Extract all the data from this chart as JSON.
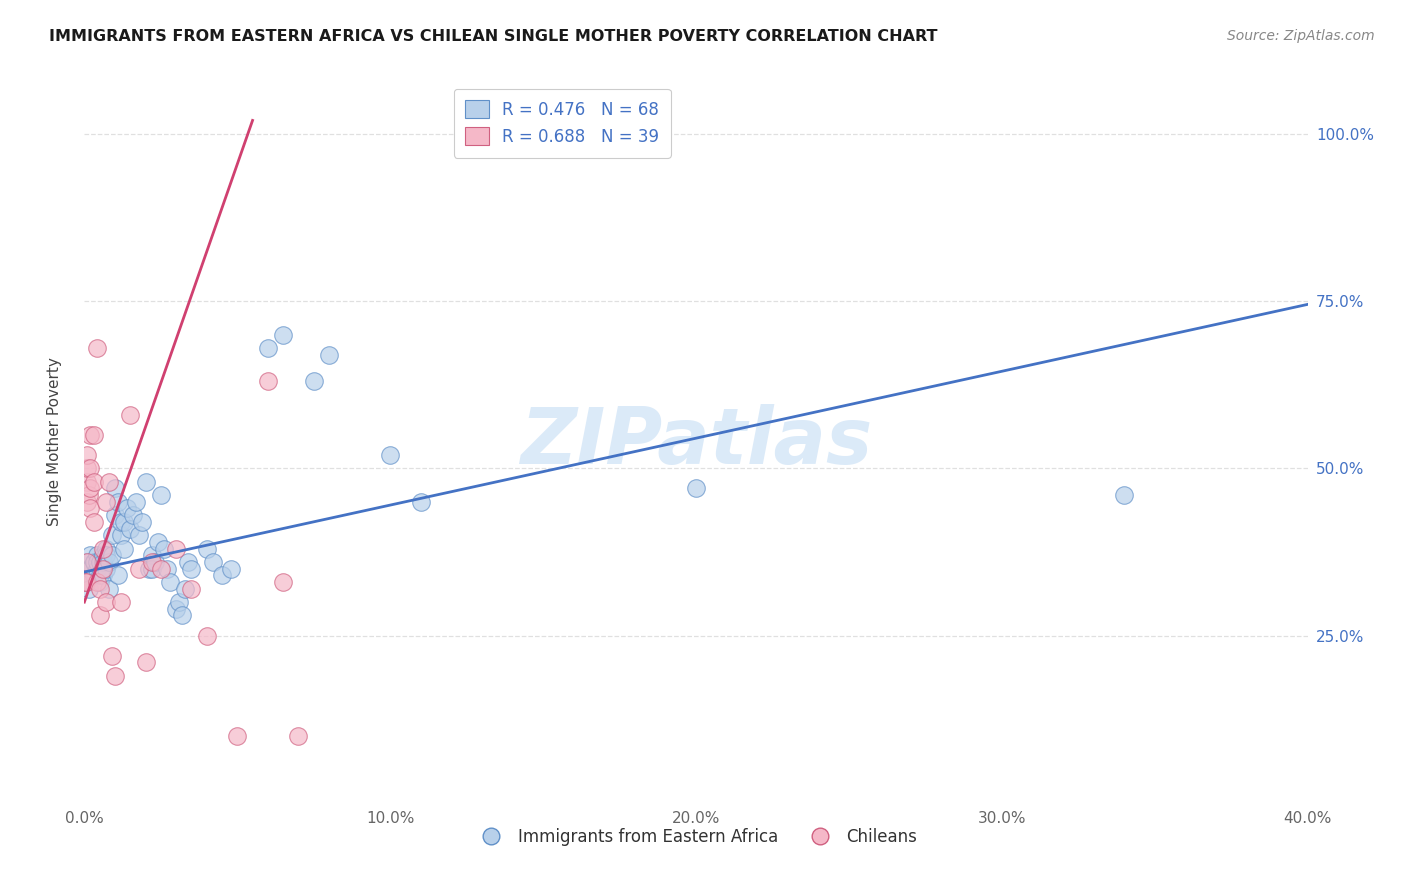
{
  "title": "IMMIGRANTS FROM EASTERN AFRICA VS CHILEAN SINGLE MOTHER POVERTY CORRELATION CHART",
  "source": "Source: ZipAtlas.com",
  "series1_label": "Immigrants from Eastern Africa",
  "series2_label": "Chileans",
  "ylabel": "Single Mother Poverty",
  "watermark": "ZIPatlas",
  "R1": 0.476,
  "N1": 68,
  "R2": 0.688,
  "N2": 39,
  "xlim": [
    0.0,
    0.4
  ],
  "ylim": [
    0.0,
    1.08
  ],
  "ytick_vals": [
    0.25,
    0.5,
    0.75,
    1.0
  ],
  "xtick_vals": [
    0.0,
    0.1,
    0.2,
    0.3,
    0.4
  ],
  "blue_fill": "#b8d0ea",
  "blue_edge": "#6090c8",
  "pink_fill": "#f5b8c8",
  "pink_edge": "#d06080",
  "blue_line": "#4472c4",
  "pink_line": "#d04070",
  "bg_color": "#ffffff",
  "grid_color": "#e0e0e0",
  "title_color": "#1a1a1a",
  "axis_label_color": "#444444",
  "tick_color_right": "#4472c4",
  "source_color": "#888888",
  "watermark_color": "#c8dff5",
  "blue_x": [
    0.0005,
    0.001,
    0.001,
    0.0015,
    0.002,
    0.002,
    0.002,
    0.003,
    0.003,
    0.003,
    0.004,
    0.004,
    0.004,
    0.005,
    0.005,
    0.005,
    0.006,
    0.006,
    0.006,
    0.007,
    0.007,
    0.007,
    0.008,
    0.008,
    0.009,
    0.009,
    0.01,
    0.01,
    0.011,
    0.011,
    0.012,
    0.012,
    0.013,
    0.013,
    0.014,
    0.015,
    0.016,
    0.017,
    0.018,
    0.019,
    0.02,
    0.021,
    0.022,
    0.022,
    0.023,
    0.024,
    0.025,
    0.026,
    0.027,
    0.028,
    0.03,
    0.031,
    0.032,
    0.033,
    0.034,
    0.035,
    0.04,
    0.042,
    0.045,
    0.048,
    0.06,
    0.065,
    0.075,
    0.08,
    0.1,
    0.11,
    0.2,
    0.34
  ],
  "blue_y": [
    0.33,
    0.33,
    0.36,
    0.32,
    0.35,
    0.35,
    0.37,
    0.34,
    0.36,
    0.36,
    0.35,
    0.37,
    0.36,
    0.33,
    0.36,
    0.34,
    0.37,
    0.34,
    0.36,
    0.38,
    0.35,
    0.37,
    0.36,
    0.32,
    0.4,
    0.37,
    0.43,
    0.47,
    0.45,
    0.34,
    0.4,
    0.42,
    0.38,
    0.42,
    0.44,
    0.41,
    0.43,
    0.45,
    0.4,
    0.42,
    0.48,
    0.35,
    0.37,
    0.35,
    0.36,
    0.39,
    0.46,
    0.38,
    0.35,
    0.33,
    0.29,
    0.3,
    0.28,
    0.32,
    0.36,
    0.35,
    0.38,
    0.36,
    0.34,
    0.35,
    0.68,
    0.7,
    0.63,
    0.67,
    0.52,
    0.45,
    0.47,
    0.46
  ],
  "pink_x": [
    0.0003,
    0.0005,
    0.0008,
    0.001,
    0.001,
    0.001,
    0.001,
    0.0015,
    0.002,
    0.002,
    0.002,
    0.002,
    0.003,
    0.003,
    0.003,
    0.004,
    0.004,
    0.005,
    0.005,
    0.006,
    0.006,
    0.007,
    0.007,
    0.008,
    0.009,
    0.01,
    0.012,
    0.015,
    0.018,
    0.02,
    0.022,
    0.025,
    0.03,
    0.035,
    0.04,
    0.05,
    0.06,
    0.065,
    0.07
  ],
  "pink_y": [
    0.33,
    0.33,
    0.36,
    0.45,
    0.48,
    0.5,
    0.52,
    0.46,
    0.44,
    0.47,
    0.5,
    0.55,
    0.42,
    0.48,
    0.55,
    0.68,
    0.33,
    0.28,
    0.32,
    0.35,
    0.38,
    0.45,
    0.3,
    0.48,
    0.22,
    0.19,
    0.3,
    0.58,
    0.35,
    0.21,
    0.36,
    0.35,
    0.38,
    0.32,
    0.25,
    0.1,
    0.63,
    0.33,
    0.1
  ],
  "blue_line_x0": 0.0,
  "blue_line_x1": 0.4,
  "blue_line_y0": 0.345,
  "blue_line_y1": 0.745,
  "pink_line_x0": 0.0,
  "pink_line_x1": 0.055,
  "pink_line_y0": 0.3,
  "pink_line_y1": 1.02
}
